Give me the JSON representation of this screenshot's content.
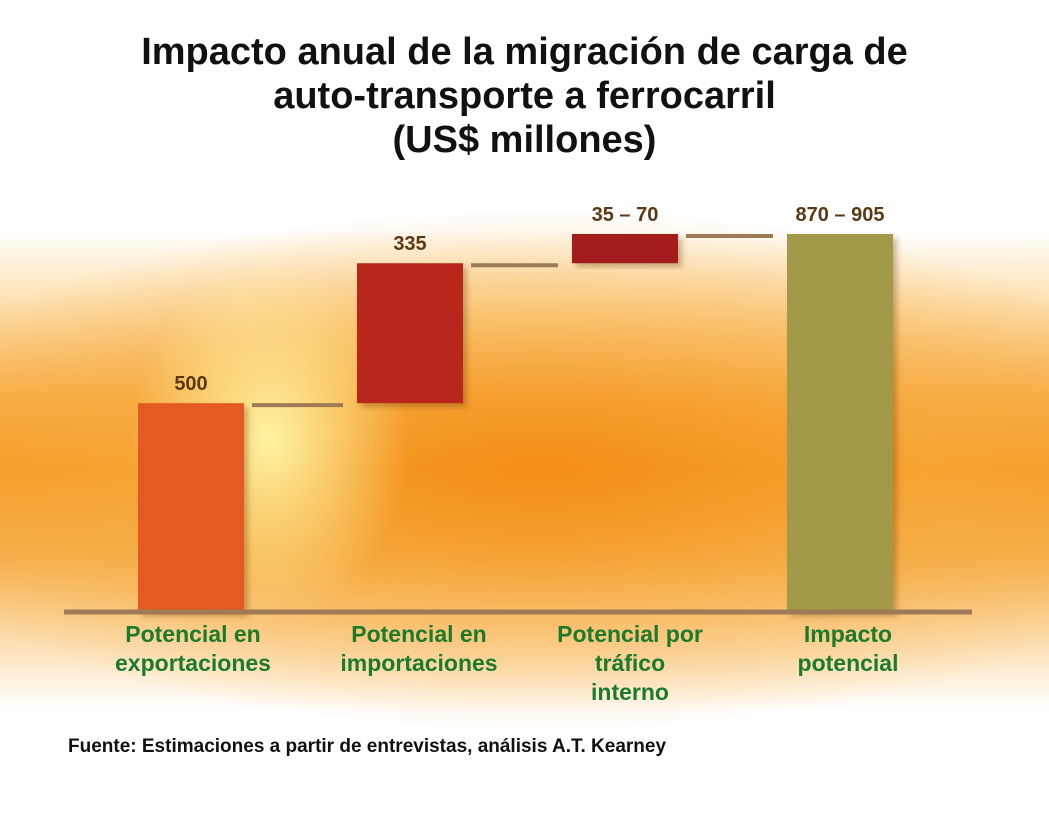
{
  "title_lines": [
    "Impacto anual de la migración de carga de",
    "auto-transporte a ferrocarril",
    "(US$ millones)"
  ],
  "source": "Fuente:  Estimaciones a partir de entrevistas, análisis A.T. Kearney",
  "colors": {
    "exportaciones": "#e55a24",
    "importaciones": "#b8281e",
    "trafico": "#a51f1c",
    "impacto": "#a39a48",
    "connector": "#9e7a56",
    "baseline": "#9e7a56",
    "value_label": "#5a3a14",
    "category_label": "#1c7a2c"
  },
  "chart_data": {
    "type": "bar",
    "subtype": "waterfall",
    "title": "Impacto anual de la migración de carga de auto-transporte a ferrocarril (US$ millones)",
    "categories": [
      "Potencial en\nexportaciones",
      "Potencial en\nimportaciones",
      "Potencial por\ntráfico\ninterno",
      "Impacto\npotencial"
    ],
    "bars": [
      {
        "category": "Potencial en exportaciones",
        "start": 0,
        "end": 500,
        "label": "500",
        "color_key": "exportaciones"
      },
      {
        "category": "Potencial en importaciones",
        "start": 500,
        "end": 835,
        "label": "335",
        "color_key": "importaciones"
      },
      {
        "category": "Potencial por tráfico interno",
        "start": 835,
        "end": 905,
        "label": "35 – 70",
        "color_key": "trafico"
      },
      {
        "category": "Impacto potencial",
        "start": 0,
        "end": 905,
        "label": "870 –  905",
        "color_key": "impacto"
      }
    ],
    "connectors": [
      {
        "from": 0,
        "to": 1,
        "value": 500
      },
      {
        "from": 1,
        "to": 2,
        "value": 835
      },
      {
        "from": 2,
        "to": 3,
        "value": 905
      }
    ],
    "ylim": [
      0,
      905
    ],
    "grid": false,
    "legend": "none"
  }
}
